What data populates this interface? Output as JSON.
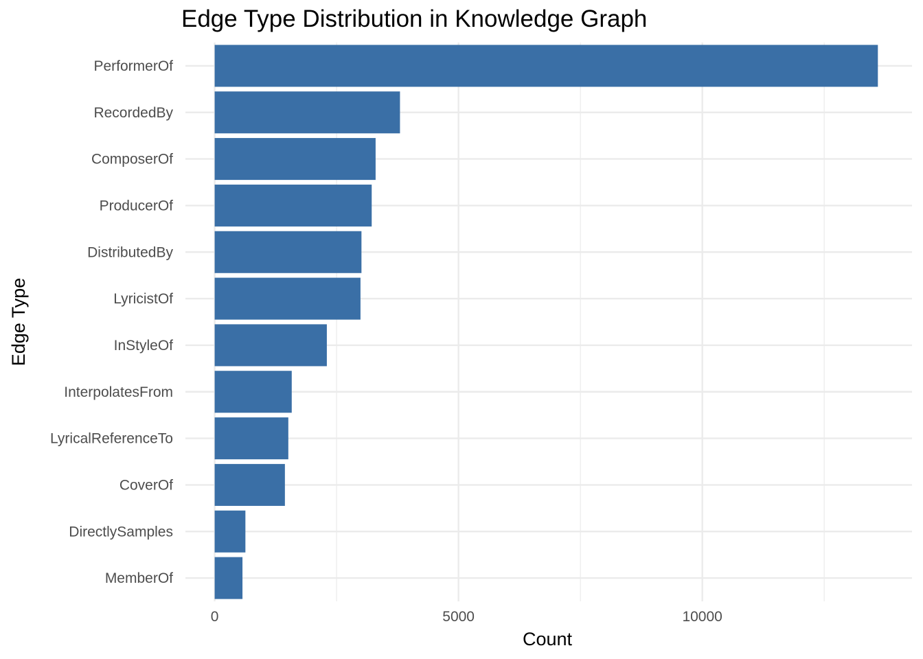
{
  "chart_data": {
    "type": "bar",
    "orientation": "horizontal",
    "title": "Edge Type Distribution in Knowledge Graph",
    "xlabel": "Count",
    "ylabel": "Edge Type",
    "categories": [
      "PerformerOf",
      "RecordedBy",
      "ComposerOf",
      "ProducerOf",
      "DistributedBy",
      "LyricistOf",
      "InStyleOf",
      "InterpolatesFrom",
      "LyricalReferenceTo",
      "CoverOf",
      "DirectlySamples",
      "MemberOf"
    ],
    "values": [
      13600,
      3800,
      3300,
      3220,
      3010,
      2990,
      2300,
      1580,
      1510,
      1440,
      630,
      570
    ],
    "xlim": [
      -600,
      14300
    ],
    "x_ticks": [
      0,
      5000,
      10000
    ],
    "x_tick_labels": [
      "0",
      "5000",
      "10000"
    ],
    "grid": true,
    "bar_color": "#3a6fa6",
    "grid_color": "#ebebeb"
  }
}
